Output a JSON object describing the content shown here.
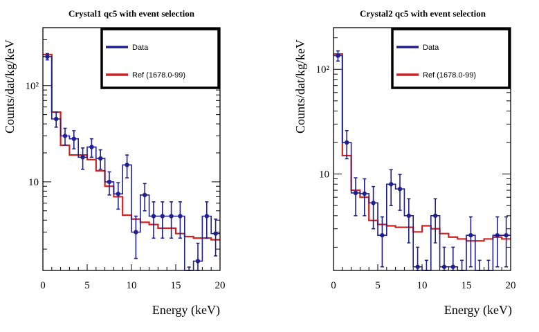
{
  "colors": {
    "data": "#1f1f8f",
    "ref": "#cc2222",
    "frame": "#000000",
    "background": "#ffffff"
  },
  "chart_data": [
    {
      "type": "histogram",
      "title": "Crystal1 qc5 with event selection",
      "xlabel": "Energy (keV)",
      "ylabel": "Counts/dat/kg/keV",
      "xlim": [
        0,
        20
      ],
      "ylim": [
        1.2,
        400
      ],
      "yscale": "log",
      "bin_width": 1,
      "xticks": [
        0,
        5,
        10,
        15,
        20
      ],
      "xtick_labels": [
        "0",
        "5",
        "10",
        "15",
        "20"
      ],
      "yticks": [
        10,
        100
      ],
      "ytick_labels": [
        "10",
        "10²"
      ],
      "legend": {
        "placement": "top-right",
        "entries": [
          "Data",
          "Ref (1678.0-99)"
        ]
      },
      "series": [
        {
          "name": "Data",
          "style": "step-with-errorbars",
          "x": [
            0.5,
            1.5,
            2.5,
            3.5,
            4.5,
            5.5,
            6.5,
            7.5,
            8.5,
            9.5,
            10.5,
            11.5,
            12.5,
            13.5,
            14.5,
            15.5,
            16.5,
            17.5,
            18.5,
            19.5
          ],
          "values": [
            200,
            45,
            30,
            28,
            18,
            23,
            17.5,
            10,
            7.5,
            15,
            3,
            7.3,
            4.4,
            4.4,
            4.4,
            4.4,
            0.9,
            1.5,
            4.4,
            2.9
          ],
          "err_low": [
            185,
            37,
            24,
            22,
            13.5,
            18,
            13.5,
            7.3,
            5.2,
            11,
            1.6,
            5,
            2.6,
            2.6,
            2.6,
            2.6,
            0.5,
            0.7,
            2.6,
            1.7
          ],
          "err_high": [
            215,
            53,
            36,
            34,
            22.5,
            28,
            21.5,
            12.7,
            9.8,
            19,
            4.4,
            9.6,
            6.2,
            6.2,
            6.2,
            6.2,
            1.3,
            2.3,
            6.2,
            4.1
          ]
        },
        {
          "name": "Ref (1678.0-99)",
          "style": "step",
          "x": [
            0.5,
            1.5,
            2.5,
            3.5,
            4.5,
            5.5,
            6.5,
            7.5,
            8.5,
            9.5,
            10.5,
            11.5,
            12.5,
            13.5,
            14.5,
            15.5,
            16.5,
            17.5,
            18.5,
            19.5
          ],
          "values": [
            210,
            53,
            24,
            19,
            19,
            17,
            13,
            9,
            7,
            4.5,
            4.1,
            3.8,
            3.6,
            3.3,
            3.3,
            2.9,
            2.7,
            2.6,
            2.6,
            2.5
          ]
        }
      ]
    },
    {
      "type": "histogram",
      "title": "Crystal2 qc5 with event selection",
      "xlabel": "Energy (keV)",
      "ylabel": "Counts/dat/kg/keV",
      "xlim": [
        0,
        20
      ],
      "ylim": [
        1.2,
        250
      ],
      "yscale": "log",
      "bin_width": 1,
      "xticks": [
        0,
        5,
        10,
        15,
        20
      ],
      "xtick_labels": [
        "0",
        "5",
        "10",
        "15",
        "20"
      ],
      "yticks": [
        10,
        100
      ],
      "ytick_labels": [
        "10",
        "10²"
      ],
      "legend": {
        "placement": "top-right",
        "entries": [
          "Data",
          "Ref (1678.0-99)"
        ]
      },
      "series": [
        {
          "name": "Data",
          "style": "step-with-errorbars",
          "x": [
            0.5,
            1.5,
            2.5,
            3.5,
            4.5,
            5.5,
            6.5,
            7.5,
            8.5,
            9.5,
            10.5,
            11.5,
            12.5,
            13.5,
            14.5,
            15.5,
            16.5,
            17.5,
            18.5,
            19.5
          ],
          "values": [
            135,
            20,
            6.6,
            6.5,
            5.3,
            2.6,
            8,
            7.2,
            4,
            1.3,
            1,
            4,
            1.3,
            1.3,
            1,
            2.6,
            1,
            1,
            2.6,
            2.6
          ],
          "err_low": [
            120,
            14,
            4,
            4,
            3,
            1.3,
            5,
            4.5,
            2.2,
            0.6,
            0.5,
            2.2,
            0.6,
            0.6,
            0.5,
            1.3,
            0.5,
            0.5,
            1.3,
            1.3
          ],
          "err_high": [
            150,
            26,
            9.2,
            9,
            7.6,
            3.9,
            11,
            9.9,
            5.8,
            2,
            1.5,
            5.8,
            2,
            2,
            1.5,
            3.9,
            1.5,
            1.5,
            3.9,
            3.9
          ]
        },
        {
          "name": "Ref (1678.0-99)",
          "style": "step",
          "x": [
            0.5,
            1.5,
            2.5,
            3.5,
            4.5,
            5.5,
            6.5,
            7.5,
            8.5,
            9.5,
            10.5,
            11.5,
            12.5,
            13.5,
            14.5,
            15.5,
            16.5,
            17.5,
            18.5,
            19.5
          ],
          "values": [
            140,
            15,
            7,
            6,
            3.6,
            3.3,
            3.2,
            3.1,
            3.1,
            2.8,
            3.2,
            3,
            2.7,
            2.5,
            2.4,
            2.3,
            2.3,
            2.4,
            2.5,
            2.4
          ]
        }
      ]
    }
  ]
}
